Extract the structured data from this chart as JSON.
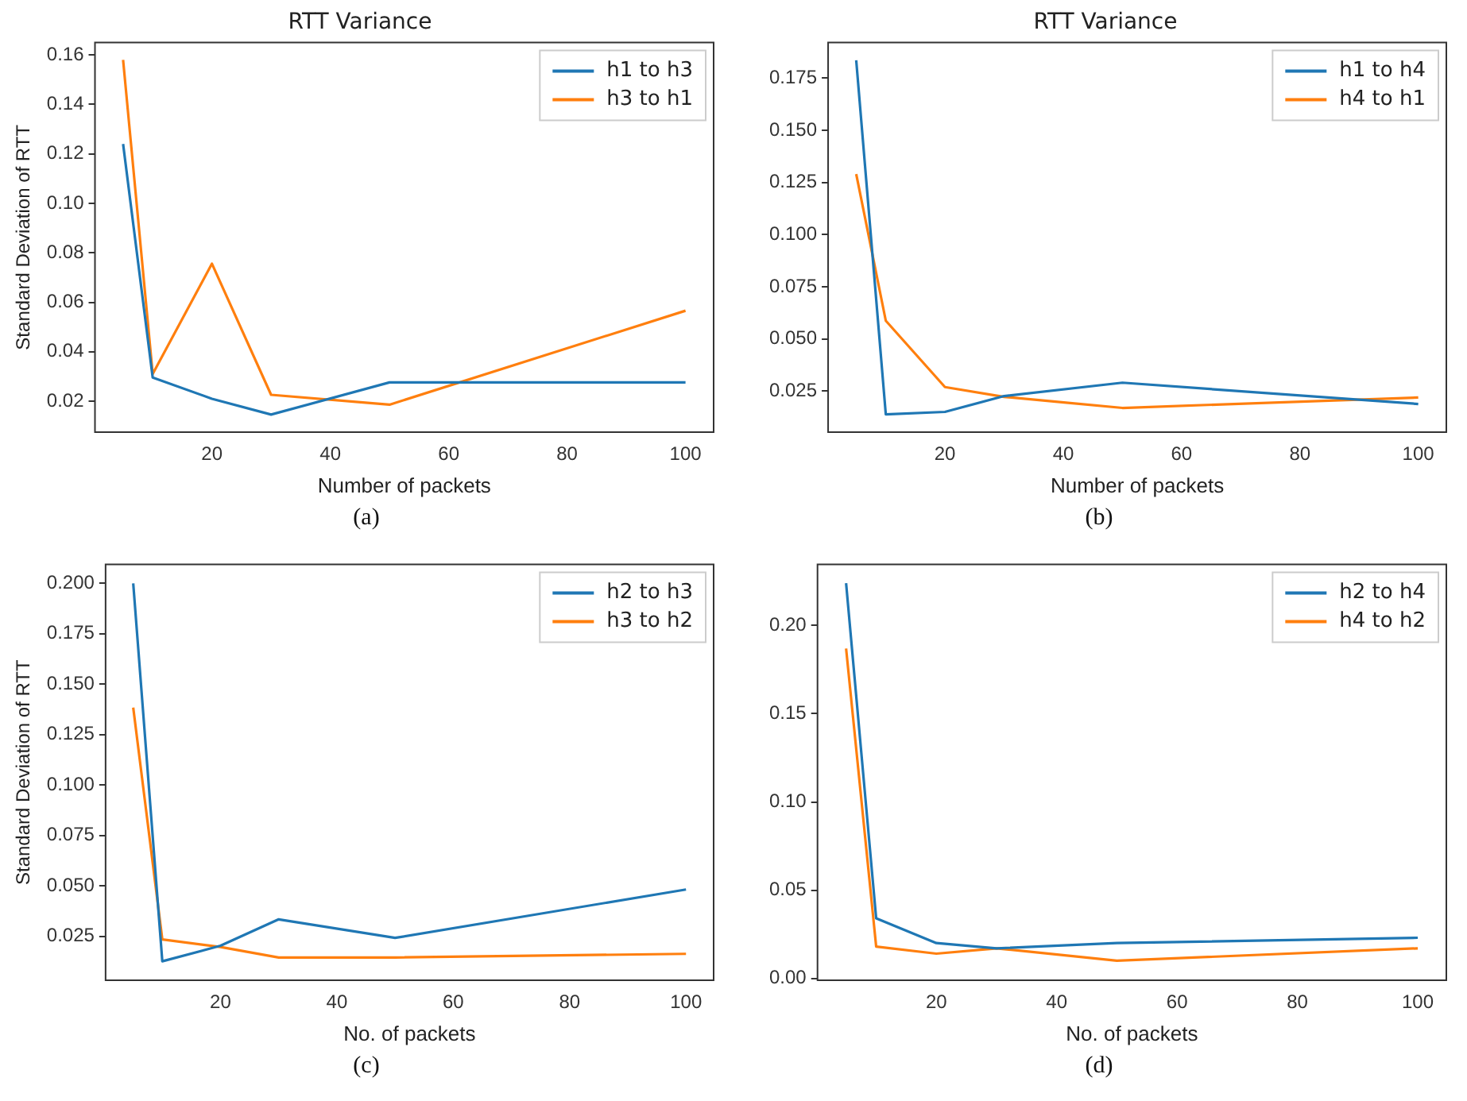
{
  "chart_data": [
    {
      "type": "line",
      "title": "RTT Variance",
      "xlabel": "Number of packets",
      "ylabel": "Standard Deviation of RTT",
      "x": [
        5,
        10,
        20,
        30,
        50,
        100
      ],
      "xlim": [
        0.25,
        104.75
      ],
      "xticks": [
        20,
        40,
        60,
        80,
        100
      ],
      "ylim": [
        0.0075,
        0.165
      ],
      "yticks": [
        0.02,
        0.04,
        0.06,
        0.08,
        {
          "value": 0.1,
          "label": "0.10"
        },
        0.12,
        0.14,
        0.16
      ],
      "legend": "top right",
      "annotations": [
        "(a)"
      ],
      "series": [
        {
          "name": "h1 to h3",
          "color": "#1f77b4",
          "values": [
            0.124,
            0.0296,
            0.021,
            0.0146,
            0.0276,
            0.0276
          ]
        },
        {
          "name": "h3 to h1",
          "color": "#ff7f0e",
          "values": [
            0.158,
            0.031,
            0.0756,
            0.0226,
            0.0186,
            0.0566
          ]
        }
      ]
    },
    {
      "type": "line",
      "title": "RTT Variance",
      "xlabel": "Number of packets",
      "x": [
        5,
        10,
        20,
        30,
        50,
        100
      ],
      "xlim": [
        0.25,
        104.75
      ],
      "xticks": [
        20,
        40,
        60,
        80,
        100
      ],
      "ylim": [
        0.0053,
        0.192
      ],
      "yticks": [
        0.025,
        {
          "value": 0.05,
          "label": "0.050"
        },
        0.075,
        {
          "value": 0.1,
          "label": "0.100"
        },
        0.125,
        {
          "value": 0.15,
          "label": "0.150"
        },
        0.175
      ],
      "legend": "top right",
      "annotations": [
        "(b)"
      ],
      "series": [
        {
          "name": "h1 to h4",
          "color": "#1f77b4",
          "values": [
            0.1835,
            0.0138,
            0.015,
            0.0226,
            0.029,
            0.0188
          ]
        },
        {
          "name": "h4 to h1",
          "color": "#ff7f0e",
          "values": [
            0.129,
            0.0587,
            0.0269,
            0.0222,
            0.0169,
            0.0219
          ]
        }
      ]
    },
    {
      "type": "line",
      "xlabel": "No. of packets",
      "ylabel": "Standard Deviation of RTT",
      "x": [
        5,
        10,
        20,
        30,
        50,
        100
      ],
      "xlim": [
        0.25,
        104.75
      ],
      "xticks": [
        20,
        40,
        60,
        80,
        100
      ],
      "ylim": [
        0.0032,
        0.2094
      ],
      "yticks": [
        0.025,
        {
          "value": 0.05,
          "label": "0.050"
        },
        0.075,
        {
          "value": 0.1,
          "label": "0.100"
        },
        0.125,
        {
          "value": 0.15,
          "label": "0.150"
        },
        0.175,
        {
          "value": 0.2,
          "label": "0.200"
        }
      ],
      "legend": "top right",
      "annotations": [
        "(c)"
      ],
      "series": [
        {
          "name": "h2 to h3",
          "color": "#1f77b4",
          "values": [
            0.2,
            0.0126,
            0.0203,
            0.0334,
            0.0242,
            0.0482
          ]
        },
        {
          "name": "h3 to h2",
          "color": "#ff7f0e",
          "values": [
            0.1384,
            0.0234,
            0.0197,
            0.0145,
            0.0145,
            0.0163
          ]
        }
      ]
    },
    {
      "type": "line",
      "xlabel": "No. of packets",
      "x": [
        5,
        10,
        20,
        30,
        50,
        100
      ],
      "xlim": [
        0.25,
        104.75
      ],
      "xticks": [
        20,
        40,
        60,
        80,
        100
      ],
      "ylim": [
        -0.0011,
        0.2347
      ],
      "yticks": [
        {
          "value": 0,
          "label": "0.00"
        },
        0.05,
        {
          "value": 0.1,
          "label": "0.10"
        },
        0.15,
        {
          "value": 0.2,
          "label": "0.20"
        }
      ],
      "legend": "top right",
      "annotations": [
        "(d)"
      ],
      "series": [
        {
          "name": "h2 to h4",
          "color": "#1f77b4",
          "values": [
            0.224,
            0.034,
            0.02,
            0.017,
            0.02,
            0.023
          ]
        },
        {
          "name": "h4 to h2",
          "color": "#ff7f0e",
          "values": [
            0.187,
            0.018,
            0.014,
            0.017,
            0.01,
            0.017
          ]
        }
      ]
    }
  ]
}
